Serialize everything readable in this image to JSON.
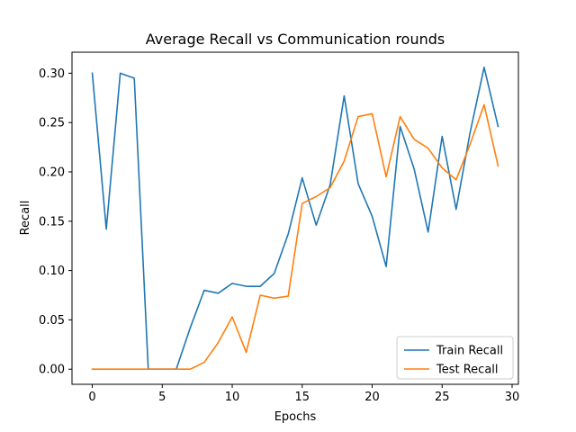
{
  "chart_data": {
    "type": "line",
    "title": "Average Recall vs Communication rounds",
    "xlabel": "Epochs",
    "ylabel": "Recall",
    "xlim": [
      -1.45,
      30.45
    ],
    "ylim": [
      -0.0153,
      0.3213
    ],
    "xticks": [
      0,
      5,
      10,
      15,
      20,
      25,
      30
    ],
    "xtick_labels": [
      "0",
      "5",
      "10",
      "15",
      "20",
      "25",
      "30"
    ],
    "yticks": [
      0.0,
      0.05,
      0.1,
      0.15,
      0.2,
      0.25,
      0.3
    ],
    "ytick_labels": [
      "0.00",
      "0.05",
      "0.10",
      "0.15",
      "0.20",
      "0.25",
      "0.30"
    ],
    "grid": false,
    "legend_position": "lower-right",
    "x": [
      0,
      1,
      2,
      3,
      4,
      5,
      6,
      7,
      8,
      9,
      10,
      11,
      12,
      13,
      14,
      15,
      16,
      17,
      18,
      19,
      20,
      21,
      22,
      23,
      24,
      25,
      26,
      27,
      28,
      29
    ],
    "series": [
      {
        "name": "Train Recall",
        "color": "#1f77b4",
        "values": [
          0.3,
          0.142,
          0.3,
          0.295,
          0.0,
          0.0,
          0.0,
          0.042,
          0.08,
          0.077,
          0.087,
          0.084,
          0.084,
          0.097,
          0.137,
          0.194,
          0.146,
          0.187,
          0.277,
          0.188,
          0.155,
          0.104,
          0.246,
          0.203,
          0.139,
          0.236,
          0.162,
          0.24,
          0.306,
          0.246
        ]
      },
      {
        "name": "Test Recall",
        "color": "#ff7f0e",
        "values": [
          0.0,
          0.0,
          0.0,
          0.0,
          0.0,
          0.0,
          0.0,
          0.0,
          0.007,
          0.027,
          0.053,
          0.017,
          0.075,
          0.072,
          0.074,
          0.168,
          0.175,
          0.184,
          0.211,
          0.256,
          0.259,
          0.195,
          0.256,
          0.233,
          0.224,
          0.204,
          0.192,
          0.228,
          0.268,
          0.206
        ]
      }
    ]
  }
}
